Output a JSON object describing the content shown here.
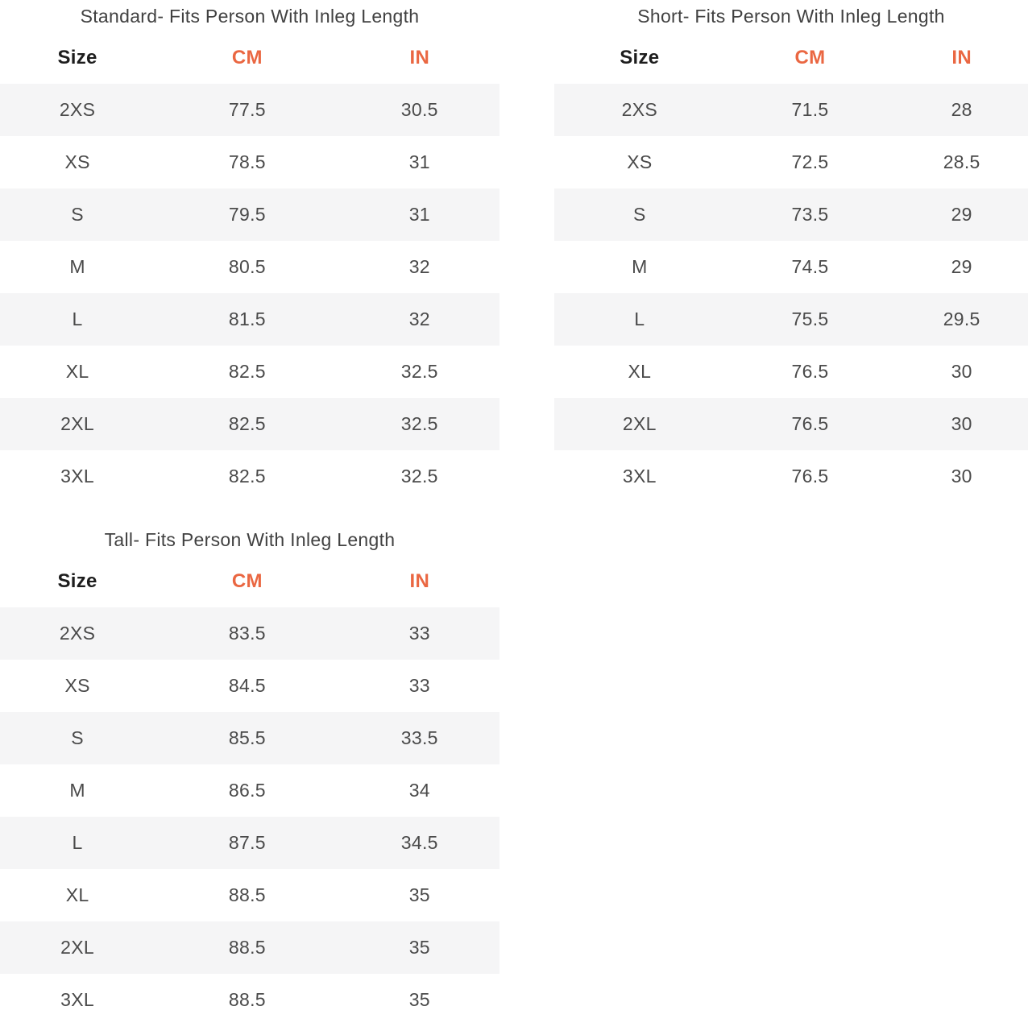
{
  "colors": {
    "accent": "#ea6742",
    "row_stripe": "#f5f5f6",
    "title_text": "#414141",
    "header_text": "#1d1d1d",
    "cell_text": "#4a4a4a"
  },
  "chart_data": [
    {
      "type": "table",
      "title": "Standard- Fits Person With Inleg Length",
      "columns": [
        "Size",
        "CM",
        "IN"
      ],
      "rows": [
        [
          "2XS",
          77.5,
          30.5
        ],
        [
          "XS",
          78.5,
          31
        ],
        [
          "S",
          79.5,
          31
        ],
        [
          "M",
          80.5,
          32
        ],
        [
          "L",
          81.5,
          32
        ],
        [
          "XL",
          82.5,
          32.5
        ],
        [
          "2XL",
          82.5,
          32.5
        ],
        [
          "3XL",
          82.5,
          32.5
        ]
      ]
    },
    {
      "type": "table",
      "title": "Short- Fits Person With Inleg Length",
      "columns": [
        "Size",
        "CM",
        "IN"
      ],
      "rows": [
        [
          "2XS",
          71.5,
          28
        ],
        [
          "XS",
          72.5,
          28.5
        ],
        [
          "S",
          73.5,
          29
        ],
        [
          "M",
          74.5,
          29
        ],
        [
          "L",
          75.5,
          29.5
        ],
        [
          "XL",
          76.5,
          30
        ],
        [
          "2XL",
          76.5,
          30
        ],
        [
          "3XL",
          76.5,
          30
        ]
      ]
    },
    {
      "type": "table",
      "title": "Tall- Fits Person With Inleg Length",
      "columns": [
        "Size",
        "CM",
        "IN"
      ],
      "rows": [
        [
          "2XS",
          83.5,
          33
        ],
        [
          "XS",
          84.5,
          33
        ],
        [
          "S",
          85.5,
          33.5
        ],
        [
          "M",
          86.5,
          34
        ],
        [
          "L",
          87.5,
          34.5
        ],
        [
          "XL",
          88.5,
          35
        ],
        [
          "2XL",
          88.5,
          35
        ],
        [
          "3XL",
          88.5,
          35
        ]
      ]
    }
  ]
}
